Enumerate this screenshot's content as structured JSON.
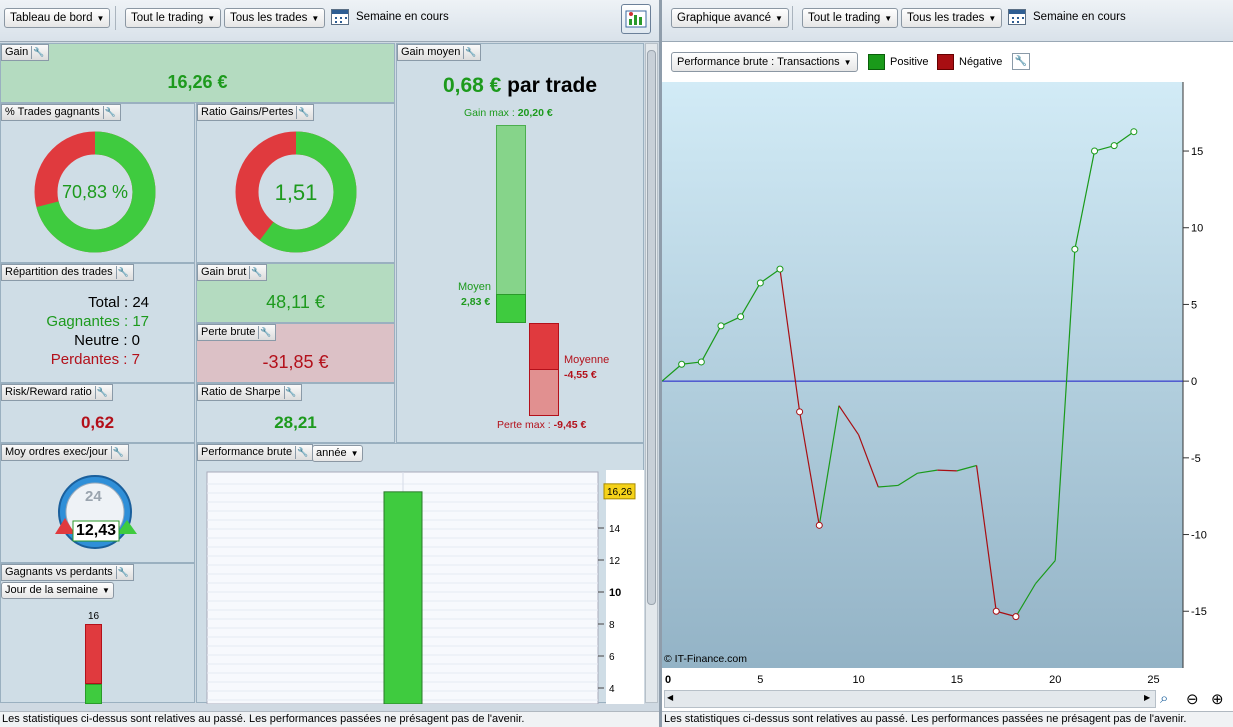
{
  "left_toolbar": {
    "dashboard_dropdown": "Tableau de bord",
    "trading_dropdown": "Tout le trading",
    "trades_dropdown": "Tous les trades",
    "period_label": "Semaine en cours",
    "calendar_icon": "calendar-icon",
    "dashboard_icon": "dashboard-chart-icon"
  },
  "panels": {
    "gain": {
      "title": "Gain",
      "value": "16,26 €"
    },
    "avg_gain": {
      "title": "Gain moyen",
      "value": "0,68 €",
      "suffix": "par trade",
      "max_gain_label": "Gain max :",
      "max_gain_value": "20,20 €",
      "mean_label": "Moyen",
      "mean_value": "2,83 €",
      "mean_loss_label": "Moyenne",
      "mean_loss_value": "-4,55 €",
      "max_loss_label": "Perte max :",
      "max_loss_value": "-9,45 €",
      "max_gain_num": 20.2,
      "mean_num": 2.83,
      "mean_loss_num": -4.55,
      "max_loss_num": -9.45
    },
    "win_pct": {
      "title": "% Trades gagnants",
      "value": "70,83 %",
      "fraction": 0.7083
    },
    "ratio": {
      "title": "Ratio Gains/Pertes",
      "value": "1,51",
      "fraction": 0.6016
    },
    "distribution": {
      "title": "Répartition des trades",
      "total_label": "Total :",
      "total": "24",
      "winners_label": "Gagnantes :",
      "winners": "17",
      "neutral_label": "Neutre :",
      "neutral": "0",
      "losers_label": "Perdantes :",
      "losers": "7"
    },
    "gross_gain": {
      "title": "Gain brut",
      "value": "48,11 €"
    },
    "gross_loss": {
      "title": "Perte brute",
      "value": "-31,85 €"
    },
    "risk_reward": {
      "title": "Risk/Reward ratio",
      "value": "0,62"
    },
    "sharpe": {
      "title": "Ratio de Sharpe",
      "value": "28,21"
    },
    "orders_per_day": {
      "title": "Moy ordres exec/jour",
      "value": "12,43",
      "clock_label": "24"
    },
    "gross_perf": {
      "title": "Performance brute",
      "period": "année"
    },
    "win_vs_loss": {
      "title": "Gagnants vs perdants",
      "period": "Jour de la semaine",
      "bar_label": "16"
    }
  },
  "bar_chart_data": {
    "type": "bar",
    "values": [
      16.26
    ],
    "value_badge": "16,26",
    "ylim": [
      3,
      17.5
    ],
    "ticks": [
      "4",
      "6",
      "8",
      "10",
      "12",
      "14"
    ],
    "tick_values": [
      4,
      6,
      8,
      10,
      12,
      14
    ]
  },
  "right_toolbar": {
    "chart_dropdown": "Graphique avancé",
    "trading_dropdown": "Tout le trading",
    "trades_dropdown": "Tous les trades",
    "period_label": "Semaine en cours"
  },
  "right_chart_header": {
    "mode_dropdown": "Performance brute : Transactions",
    "legend_positive": "Positive",
    "legend_negative": "Négative",
    "positive_color": "#1a9a1a",
    "negative_color": "#a80e12"
  },
  "chart_data": {
    "type": "line",
    "x": [
      0,
      1,
      2,
      3,
      4,
      5,
      6,
      7,
      8,
      9,
      10,
      11,
      12,
      13,
      14,
      15,
      16,
      17,
      18,
      19,
      20,
      21,
      22,
      23,
      24
    ],
    "values": [
      0,
      1.1,
      1.25,
      3.6,
      4.2,
      6.4,
      7.3,
      -2.0,
      -9.4,
      -1.6,
      -3.5,
      -6.9,
      -6.8,
      -6.0,
      -5.8,
      -5.85,
      -5.5,
      -15.0,
      -15.35,
      -13.2,
      -11.7,
      8.6,
      15.0,
      15.35,
      16.26
    ],
    "series": [
      {
        "name": "Positive",
        "color": "#1a9a1a"
      },
      {
        "name": "Négative",
        "color": "#a80e12"
      }
    ],
    "xlim": [
      0,
      26.5
    ],
    "ylim": [
      -18.7,
      19.5
    ],
    "xticks": [
      "0",
      "5",
      "10",
      "15",
      "20",
      "25"
    ],
    "yticks": [
      "15",
      "10",
      "5",
      "0",
      "-5",
      "-10",
      "-15"
    ],
    "ytick_values": [
      15,
      10,
      5,
      0,
      -5,
      -10,
      -15
    ],
    "copyright": "© IT-Finance.com"
  },
  "status_text": "Les statistiques ci-dessus sont relatives au passé. Les performances passées ne présagent pas de l'avenir."
}
